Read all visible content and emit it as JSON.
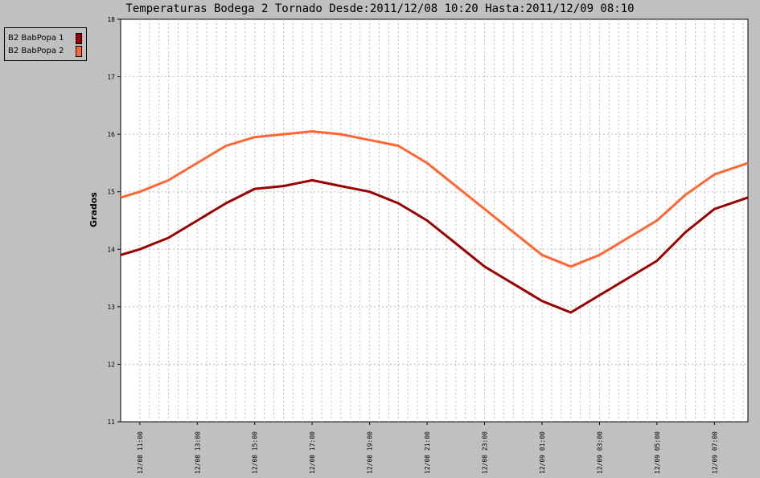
{
  "chart_data": {
    "type": "line",
    "title": "Temperaturas Bodega 2 Tornado Desde:2011/12/08 10:20 Hasta:2011/12/09 08:10",
    "ylabel": "Grados",
    "xlabel": "",
    "ylim": [
      11,
      18
    ],
    "yticks": [
      "11",
      "12",
      "13",
      "14",
      "15",
      "16",
      "17",
      "18"
    ],
    "x_start": "2011-12-08 10:20",
    "x_end": "2011-12-09 08:10",
    "xticks": [
      {
        "label": "12/08 11:00",
        "time": "2011-12-08 11:00"
      },
      {
        "label": "12/08 13:00",
        "time": "2011-12-08 13:00"
      },
      {
        "label": "12/08 15:00",
        "time": "2011-12-08 15:00"
      },
      {
        "label": "12/08 17:00",
        "time": "2011-12-08 17:00"
      },
      {
        "label": "12/08 19:00",
        "time": "2011-12-08 19:00"
      },
      {
        "label": "12/08 21:00",
        "time": "2011-12-08 21:00"
      },
      {
        "label": "12/08 23:00",
        "time": "2011-12-08 23:00"
      },
      {
        "label": "12/09 01:00",
        "time": "2011-12-09 01:00"
      },
      {
        "label": "12/09 03:00",
        "time": "2011-12-09 03:00"
      },
      {
        "label": "12/09 05:00",
        "time": "2011-12-09 05:00"
      },
      {
        "label": "12/09 07:00",
        "time": "2011-12-09 07:00"
      }
    ],
    "grid": true,
    "legend_position": "top-left",
    "x": [
      "2011-12-08 10:20",
      "2011-12-08 11:00",
      "2011-12-08 12:00",
      "2011-12-08 13:00",
      "2011-12-08 14:00",
      "2011-12-08 15:00",
      "2011-12-08 16:00",
      "2011-12-08 17:00",
      "2011-12-08 18:00",
      "2011-12-08 19:00",
      "2011-12-08 20:00",
      "2011-12-08 21:00",
      "2011-12-08 22:00",
      "2011-12-08 23:00",
      "2011-12-09 00:00",
      "2011-12-09 01:00",
      "2011-12-09 02:00",
      "2011-12-09 03:00",
      "2011-12-09 04:00",
      "2011-12-09 05:00",
      "2011-12-09 06:00",
      "2011-12-09 07:00",
      "2011-12-09 08:10"
    ],
    "series": [
      {
        "name": "B2 BabPopa 1",
        "color": "#990000",
        "values": [
          13.9,
          14.0,
          14.2,
          14.5,
          14.8,
          15.05,
          15.1,
          15.2,
          15.1,
          15.0,
          14.8,
          14.5,
          14.1,
          13.7,
          13.4,
          13.1,
          12.9,
          13.2,
          13.5,
          13.8,
          14.3,
          14.7,
          14.9
        ]
      },
      {
        "name": "B2 BabPopa 2",
        "color": "#ff6633",
        "values": [
          14.9,
          15.0,
          15.2,
          15.5,
          15.8,
          15.95,
          16.0,
          16.05,
          16.0,
          15.9,
          15.8,
          15.5,
          15.1,
          14.7,
          14.3,
          13.9,
          13.7,
          13.9,
          14.2,
          14.5,
          14.95,
          15.3,
          15.5
        ]
      }
    ]
  }
}
